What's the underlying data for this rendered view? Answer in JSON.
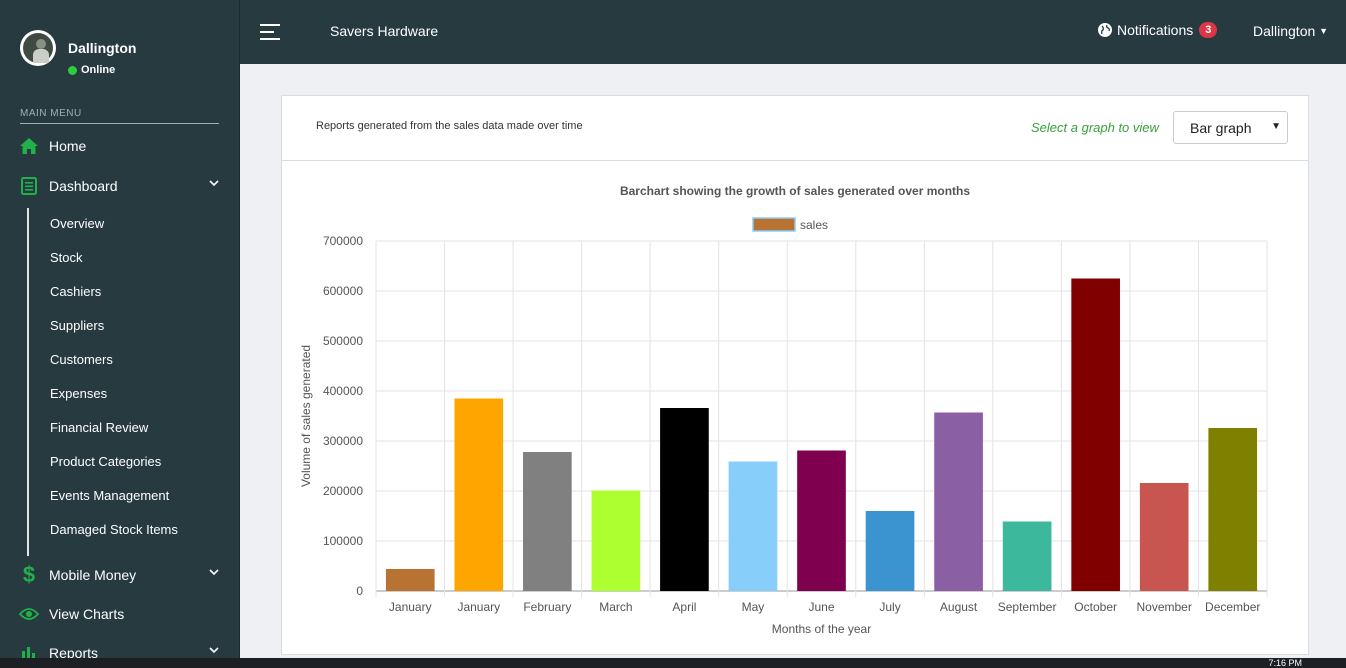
{
  "sidebar": {
    "user_name": "Dallington",
    "status": "Online",
    "menu_header": "MAIN MENU",
    "home": "Home",
    "dashboard": "Dashboard",
    "sub_items": [
      "Overview",
      "Stock",
      "Cashiers",
      "Suppliers",
      "Customers",
      "Expenses",
      "Financial Review",
      "Product Categories",
      "Events Management",
      "Damaged Stock Items"
    ],
    "mobile_money": "Mobile Money",
    "view_charts": "View Charts",
    "reports": "Reports"
  },
  "topbar": {
    "brand": "Savers Hardware",
    "notifications_label": "Notifications",
    "notifications_count": "3",
    "user_menu": "Dallington"
  },
  "card": {
    "description": "Reports generated from the sales data made over time",
    "select_label": "Select a graph to view",
    "select_value": "Bar graph"
  },
  "chart_data": {
    "type": "bar",
    "title": "Barchart showing the growth of sales generated over months",
    "legend": "sales",
    "xlabel": "Months of the year",
    "ylabel": "Volume of sales generated",
    "ylim": [
      0,
      700000
    ],
    "yticks": [
      0,
      100000,
      200000,
      300000,
      400000,
      500000,
      600000,
      700000
    ],
    "categories": [
      "January",
      "January",
      "February",
      "March",
      "April",
      "May",
      "June",
      "July",
      "August",
      "September",
      "October",
      "November",
      "December"
    ],
    "values": [
      44000,
      385000,
      278000,
      201000,
      366000,
      259000,
      281000,
      160000,
      357000,
      139000,
      625000,
      216000,
      326000
    ],
    "colors": [
      "#b87333",
      "#ffa500",
      "#808080",
      "#adff2f",
      "#000000",
      "#87cefa",
      "#800050",
      "#3b93d0",
      "#8b5fa3",
      "#3cb99d",
      "#800000",
      "#c85550",
      "#808000"
    ],
    "grid": true,
    "legend_position": "top"
  },
  "taskbar": {
    "clock": "7:16 PM"
  }
}
